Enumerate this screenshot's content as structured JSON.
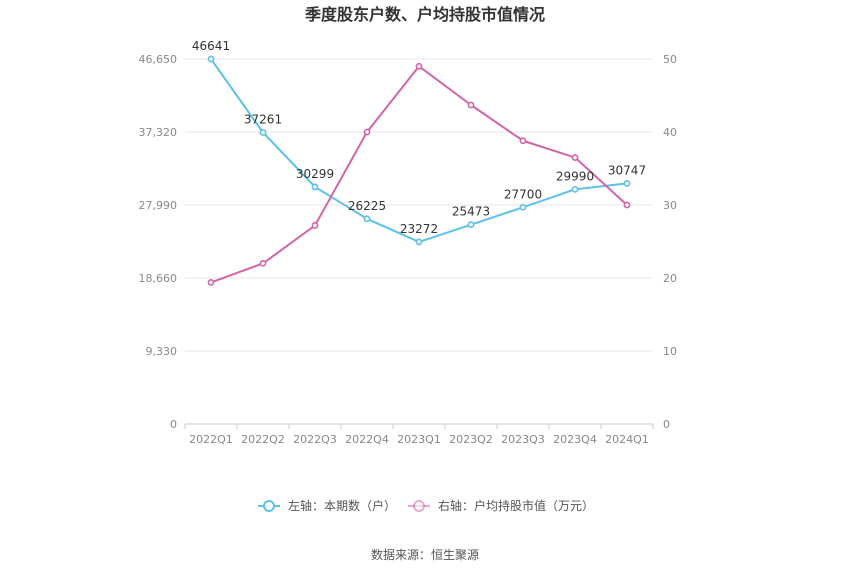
{
  "chart_data": {
    "type": "line",
    "title": "季度股东户数、户均持股市值情况",
    "categories": [
      "2022Q1",
      "2022Q2",
      "2022Q3",
      "2022Q4",
      "2023Q1",
      "2023Q2",
      "2023Q3",
      "2023Q4",
      "2024Q1"
    ],
    "y_left": {
      "ticks": [
        "0",
        "9,330",
        "18,660",
        "27,990",
        "37,320",
        "46,650"
      ],
      "ylim": [
        0,
        46650
      ]
    },
    "y_right": {
      "ticks": [
        "0",
        "10",
        "20",
        "30",
        "40",
        "50"
      ],
      "ylim": [
        0,
        50
      ]
    },
    "series": [
      {
        "name": "左轴：本期数（户）",
        "axis": "left",
        "color": "#5bc0eb",
        "values": [
          46641,
          37261,
          30299,
          26225,
          23272,
          25473,
          27700,
          29990,
          30747
        ],
        "labels": [
          "46641",
          "37261",
          "30299",
          "26225",
          "23272",
          "25473",
          "27700",
          "29990",
          "30747"
        ]
      },
      {
        "name": "右轴：户均持股市值（万元）",
        "axis": "right",
        "color": "#d264a8",
        "values": [
          19.4,
          22.0,
          27.2,
          40.0,
          49.0,
          43.7,
          38.8,
          36.5,
          30.0
        ]
      }
    ],
    "grid": true,
    "legend_position": "bottom"
  },
  "source": "数据来源：恒生聚源"
}
